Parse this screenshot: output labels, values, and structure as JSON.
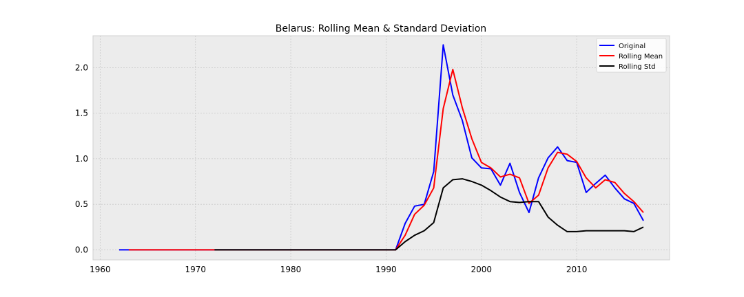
{
  "chart_data": {
    "type": "line",
    "title": "Belarus: Rolling Mean & Standard Deviation",
    "xlabel": "",
    "ylabel": "",
    "xlim": [
      1959.25,
      2019.75
    ],
    "ylim": [
      -0.11,
      2.35
    ],
    "xticks": [
      1960,
      1970,
      1980,
      1990,
      2000,
      2010
    ],
    "yticks": [
      0.0,
      0.5,
      1.0,
      1.5,
      2.0
    ],
    "xtick_labels": [
      "1960",
      "1970",
      "1980",
      "1990",
      "2000",
      "2010"
    ],
    "ytick_labels": [
      "0.0",
      "0.5",
      "1.0",
      "1.5",
      "2.0"
    ],
    "grid": true,
    "legend_position": "top-right",
    "series": [
      {
        "name": "Original",
        "color": "#0000ff",
        "x": [
          1962,
          1963,
          1964,
          1965,
          1966,
          1967,
          1968,
          1969,
          1970,
          1971,
          1972,
          1973,
          1974,
          1975,
          1976,
          1977,
          1978,
          1979,
          1980,
          1981,
          1982,
          1983,
          1984,
          1985,
          1986,
          1987,
          1988,
          1989,
          1990,
          1991,
          1992,
          1993,
          1994,
          1995,
          1996,
          1997,
          1998,
          1999,
          2000,
          2001,
          2002,
          2003,
          2004,
          2005,
          2006,
          2007,
          2008,
          2009,
          2010,
          2011,
          2012,
          2013,
          2014,
          2015,
          2016,
          2017
        ],
        "y": [
          0,
          0,
          0,
          0,
          0,
          0,
          0,
          0,
          0,
          0,
          0,
          0,
          0,
          0,
          0,
          0,
          0,
          0,
          0,
          0,
          0,
          0,
          0,
          0,
          0,
          0,
          0,
          0,
          0,
          0,
          0.29,
          0.48,
          0.5,
          0.86,
          2.25,
          1.7,
          1.42,
          1.01,
          0.9,
          0.89,
          0.71,
          0.95,
          0.63,
          0.41,
          0.79,
          1.01,
          1.13,
          0.98,
          0.96,
          0.63,
          0.73,
          0.82,
          0.68,
          0.56,
          0.51,
          0.32
        ]
      },
      {
        "name": "Rolling Mean",
        "color": "#ff0000",
        "x": [
          1963,
          1964,
          1965,
          1966,
          1967,
          1968,
          1969,
          1970,
          1971,
          1972,
          1973,
          1974,
          1975,
          1976,
          1977,
          1978,
          1979,
          1980,
          1981,
          1982,
          1983,
          1984,
          1985,
          1986,
          1987,
          1988,
          1989,
          1990,
          1991,
          1992,
          1993,
          1994,
          1995,
          1996,
          1997,
          1998,
          1999,
          2000,
          2001,
          2002,
          2003,
          2004,
          2005,
          2006,
          2007,
          2008,
          2009,
          2010,
          2011,
          2012,
          2013,
          2014,
          2015,
          2016,
          2017
        ],
        "y": [
          0,
          0,
          0,
          0,
          0,
          0,
          0,
          0,
          0,
          0,
          0,
          0,
          0,
          0,
          0,
          0,
          0,
          0,
          0,
          0,
          0,
          0,
          0,
          0,
          0,
          0,
          0,
          0,
          0,
          0.16,
          0.39,
          0.49,
          0.68,
          1.55,
          1.98,
          1.56,
          1.22,
          0.96,
          0.9,
          0.8,
          0.83,
          0.79,
          0.51,
          0.6,
          0.9,
          1.07,
          1.05,
          0.97,
          0.79,
          0.68,
          0.77,
          0.74,
          0.62,
          0.53,
          0.41
        ]
      },
      {
        "name": "Rolling Std",
        "color": "#000000",
        "x": [
          1972,
          1973,
          1974,
          1975,
          1976,
          1977,
          1978,
          1979,
          1980,
          1981,
          1982,
          1983,
          1984,
          1985,
          1986,
          1987,
          1988,
          1989,
          1990,
          1991,
          1992,
          1993,
          1994,
          1995,
          1996,
          1997,
          1998,
          1999,
          2000,
          2001,
          2002,
          2003,
          2004,
          2005,
          2006,
          2007,
          2008,
          2009,
          2010,
          2011,
          2012,
          2013,
          2014,
          2015,
          2016,
          2017
        ],
        "y": [
          0,
          0,
          0,
          0,
          0,
          0,
          0,
          0,
          0,
          0,
          0,
          0,
          0,
          0,
          0,
          0,
          0,
          0,
          0,
          0,
          0.09,
          0.16,
          0.21,
          0.3,
          0.68,
          0.77,
          0.78,
          0.75,
          0.71,
          0.65,
          0.58,
          0.53,
          0.52,
          0.53,
          0.53,
          0.36,
          0.27,
          0.2,
          0.2,
          0.21,
          0.21,
          0.21,
          0.21,
          0.21,
          0.2,
          0.25
        ]
      }
    ]
  }
}
